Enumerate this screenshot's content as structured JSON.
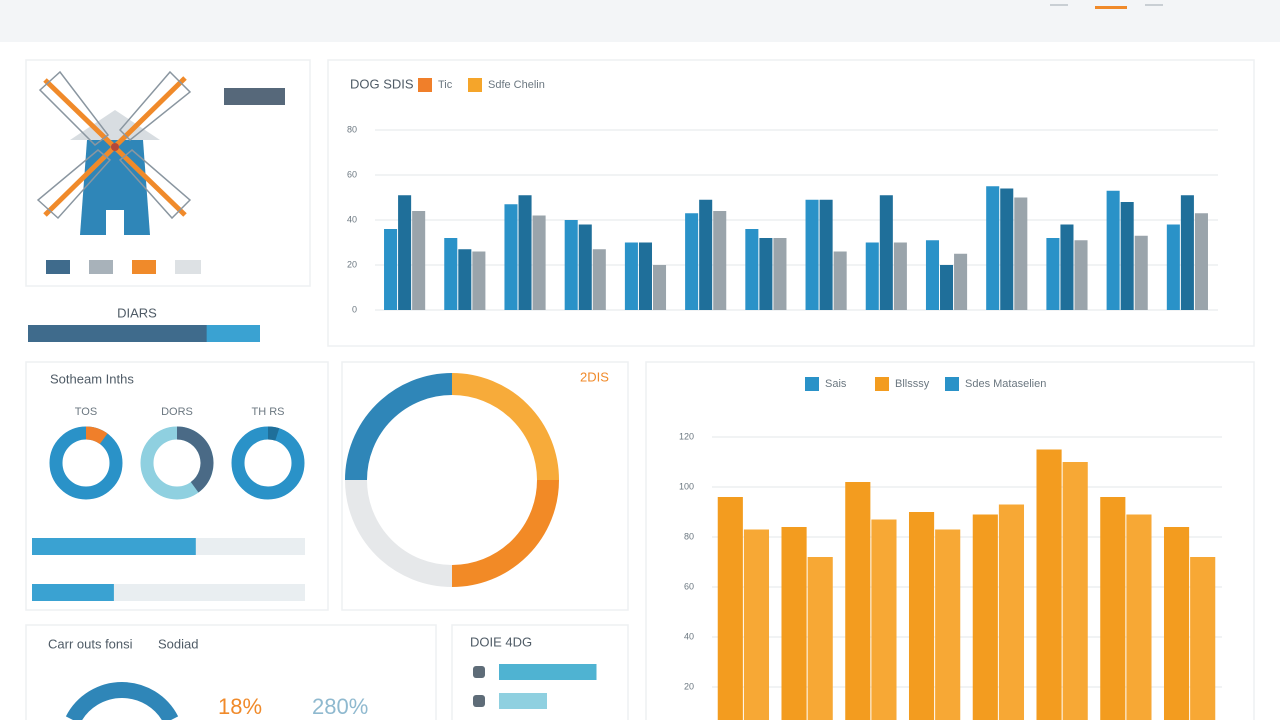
{
  "chart_data": [
    {
      "type": "bar",
      "title": "DOG SDIS",
      "legend": [
        {
          "name": "Tic",
          "color": "#f07f2a"
        },
        {
          "name": "Sdfe Chelin",
          "color": "#f5a52a"
        }
      ],
      "categories": [
        null,
        null,
        null,
        null,
        null,
        null,
        null,
        null,
        null,
        null,
        null,
        null,
        null,
        null
      ],
      "series": [
        {
          "color": "#2a92c8",
          "values": [
            36,
            32,
            47,
            40,
            30,
            43,
            36,
            49,
            30,
            31,
            55,
            32,
            53,
            38
          ]
        },
        {
          "color": "#1f6f9a",
          "values": [
            51,
            27,
            51,
            38,
            30,
            49,
            32,
            49,
            51,
            20,
            54,
            38,
            48,
            51
          ]
        },
        {
          "color": "#9aa4ab",
          "values": [
            44,
            26,
            42,
            27,
            20,
            44,
            32,
            26,
            30,
            25,
            50,
            31,
            33,
            43
          ]
        }
      ],
      "ylim": [
        0,
        80
      ],
      "yticks": [
        0,
        20,
        40,
        60,
        80
      ],
      "grid": true
    },
    {
      "type": "donut",
      "title": "2DIS",
      "values": [
        25,
        25,
        25,
        25
      ],
      "colors": [
        "#f7ab3a",
        "#f28a26",
        "#e6e8ea",
        "#2f86b8"
      ]
    },
    {
      "type": "bar",
      "legend": [
        {
          "name": "Sais",
          "color": "#2a92c8"
        },
        {
          "name": "Bllsssy",
          "color": "#f39c1f"
        },
        {
          "name": "Sdes Mataselien",
          "color": "#2a92c8"
        }
      ],
      "categories": [
        null,
        null,
        null,
        null,
        null,
        null,
        null,
        null
      ],
      "series": [
        {
          "color": "#f39c1f",
          "values": [
            96,
            84,
            102,
            90,
            89,
            115,
            96,
            84
          ]
        },
        {
          "color": "#f7a835",
          "values": [
            83,
            72,
            87,
            83,
            93,
            110,
            89,
            72
          ]
        }
      ],
      "ylim": [
        0,
        120
      ],
      "yticks": [
        20,
        40,
        60,
        80,
        100,
        120
      ],
      "grid": true
    }
  ],
  "small_donuts": {
    "title": "Sotheam Inths",
    "items": [
      {
        "label": "TOS",
        "value": 10,
        "color": "#f07f2a",
        "rest": "#2a92c8"
      },
      {
        "label": "DORS",
        "value": 40,
        "color": "#4a6a86",
        "rest": "#8fd0e0"
      },
      {
        "label": "TH RS",
        "value": 5,
        "color": "#1f6f9a",
        "rest": "#2a92c8"
      }
    ],
    "bars": [
      60,
      30
    ]
  },
  "progress": {
    "label": "DIARS",
    "value": 77
  },
  "stats": {
    "title": "Carr outs fonsi",
    "subtitle": "Sodiad",
    "first": "18%",
    "second": "280%"
  },
  "mini_bars": {
    "title": "DOIE 4DG",
    "values": [
      65,
      32
    ]
  }
}
